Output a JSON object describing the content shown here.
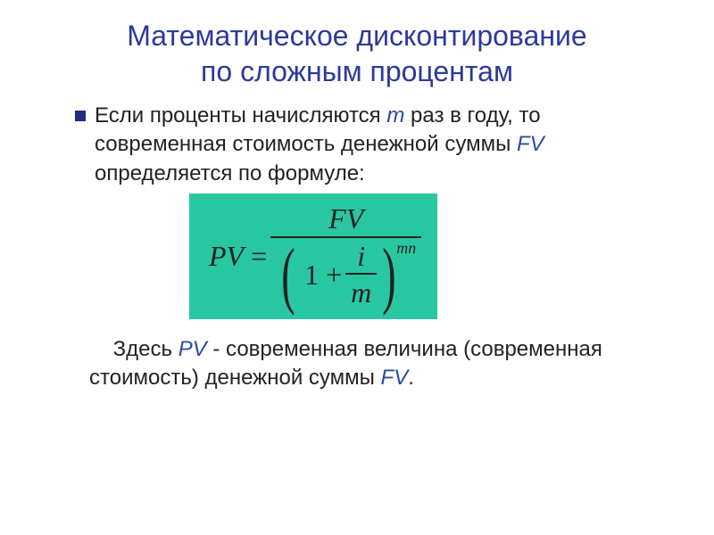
{
  "title": {
    "line1": "Математическое дисконтирование",
    "line2": "по сложным процентам",
    "color": "#2b3a9a",
    "fontsize": 32
  },
  "bullet": {
    "color": "#232c7f",
    "size": 12
  },
  "para1": {
    "text_before_m": "Если проценты начисляются ",
    "var_m": "m",
    "text_mid": " раз в году, то современная стоимость денежной суммы ",
    "var_fv": "FV",
    "text_after_fv": " определяется по формуле:",
    "color": "#222222",
    "var_color": "#2b4aa8",
    "fontsize": 24
  },
  "formula": {
    "bg_color": "#29c7a1",
    "text_color": "#222222",
    "pv": "PV",
    "eq": "=",
    "fv": "FV",
    "one": "1",
    "plus": "+",
    "i": "i",
    "m": "m",
    "exp": "mn"
  },
  "para2": {
    "text_before_pv": "Здесь ",
    "var_pv": "PV",
    "text_mid": " - современная величина (современная стоимость) денежной суммы ",
    "var_fv": "FV",
    "text_end": ".",
    "color": "#222222",
    "var_color": "#2b4aa8",
    "fontsize": 24
  }
}
